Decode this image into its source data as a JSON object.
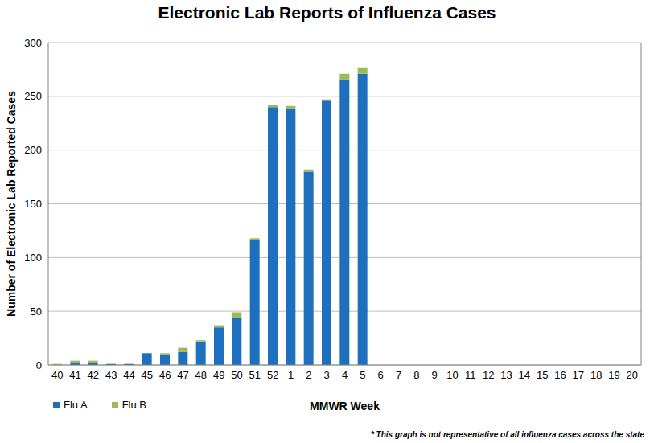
{
  "chart_data": {
    "type": "bar",
    "title": "Electronic Lab Reports of Influenza Cases",
    "x_label": "MMWR Week",
    "y_label": "Number of Electronic Lab Reported Cases",
    "annotation": "* This graph is not representative of all influenza cases across the state",
    "categories": [
      "40",
      "41",
      "42",
      "43",
      "44",
      "45",
      "46",
      "47",
      "48",
      "49",
      "50",
      "51",
      "52",
      "1",
      "2",
      "3",
      "4",
      "5",
      "6",
      "7",
      "8",
      "9",
      "10",
      "11",
      "12",
      "13",
      "14",
      "15",
      "16",
      "17",
      "18",
      "19",
      "20"
    ],
    "series": [
      {
        "name": "Flu A",
        "color": "#1f6fbf",
        "values": [
          0,
          2,
          2,
          1,
          1,
          11,
          10,
          12,
          22,
          35,
          44,
          116,
          240,
          239,
          180,
          246,
          266,
          271,
          null,
          null,
          null,
          null,
          null,
          null,
          null,
          null,
          null,
          null,
          null,
          null,
          null,
          null,
          null
        ]
      },
      {
        "name": "Flu B",
        "color": "#9bbb59",
        "values": [
          1,
          2,
          2,
          0,
          0,
          0,
          1,
          4,
          1,
          2,
          5,
          2,
          2,
          2,
          2,
          1,
          5,
          6,
          null,
          null,
          null,
          null,
          null,
          null,
          null,
          null,
          null,
          null,
          null,
          null,
          null,
          null,
          null
        ]
      }
    ],
    "ylim": [
      0,
      300
    ],
    "yticks": [
      0,
      50,
      100,
      150,
      200,
      250,
      300
    ],
    "grid": true,
    "stacked": true,
    "legend": "bottom-left"
  }
}
